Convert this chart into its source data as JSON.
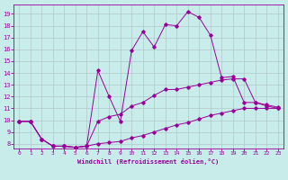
{
  "xlabel": "Windchill (Refroidissement éolien,°C)",
  "bg_color": "#c8ecea",
  "line_color": "#990099",
  "grid_color": "#b0c8c8",
  "x_ticks": [
    0,
    1,
    2,
    3,
    4,
    5,
    6,
    7,
    8,
    9,
    10,
    11,
    12,
    13,
    14,
    15,
    16,
    17,
    18,
    19,
    20,
    21,
    22,
    23
  ],
  "y_ticks": [
    8,
    9,
    10,
    11,
    12,
    13,
    14,
    15,
    16,
    17,
    18,
    19
  ],
  "ylim": [
    7.6,
    19.8
  ],
  "xlim": [
    -0.5,
    23.5
  ],
  "line1_x": [
    0,
    1,
    2,
    3,
    4,
    5,
    6,
    7,
    8,
    9,
    10,
    11,
    12,
    13,
    14,
    15,
    16,
    17,
    18,
    19,
    20,
    21,
    22,
    23
  ],
  "line1_y": [
    9.9,
    9.9,
    8.4,
    7.8,
    7.8,
    7.7,
    7.8,
    9.9,
    10.3,
    10.5,
    11.2,
    11.5,
    12.1,
    12.6,
    12.6,
    12.8,
    13.0,
    13.2,
    13.4,
    13.5,
    13.5,
    11.5,
    11.2,
    11.0
  ],
  "line2_x": [
    0,
    1,
    2,
    3,
    4,
    5,
    6,
    7,
    8,
    9,
    10,
    11,
    12,
    13,
    14,
    15,
    16,
    17,
    18,
    19,
    20,
    21,
    22,
    23
  ],
  "line2_y": [
    9.9,
    9.9,
    8.4,
    7.8,
    7.8,
    7.7,
    7.8,
    8.0,
    8.1,
    8.2,
    8.5,
    8.7,
    9.0,
    9.3,
    9.6,
    9.8,
    10.1,
    10.4,
    10.6,
    10.8,
    11.0,
    11.0,
    11.0,
    11.0
  ],
  "line3_x": [
    0,
    1,
    2,
    3,
    4,
    5,
    6,
    7,
    8,
    9,
    10,
    11,
    12,
    13,
    14,
    15,
    16,
    17,
    18,
    19,
    20,
    21,
    22,
    23
  ],
  "line3_y": [
    9.9,
    9.9,
    8.4,
    7.8,
    7.8,
    7.7,
    7.8,
    14.2,
    12.0,
    9.9,
    15.9,
    17.5,
    16.2,
    18.1,
    18.0,
    19.2,
    18.7,
    17.2,
    13.6,
    13.7,
    11.5,
    11.5,
    11.3,
    11.1
  ]
}
